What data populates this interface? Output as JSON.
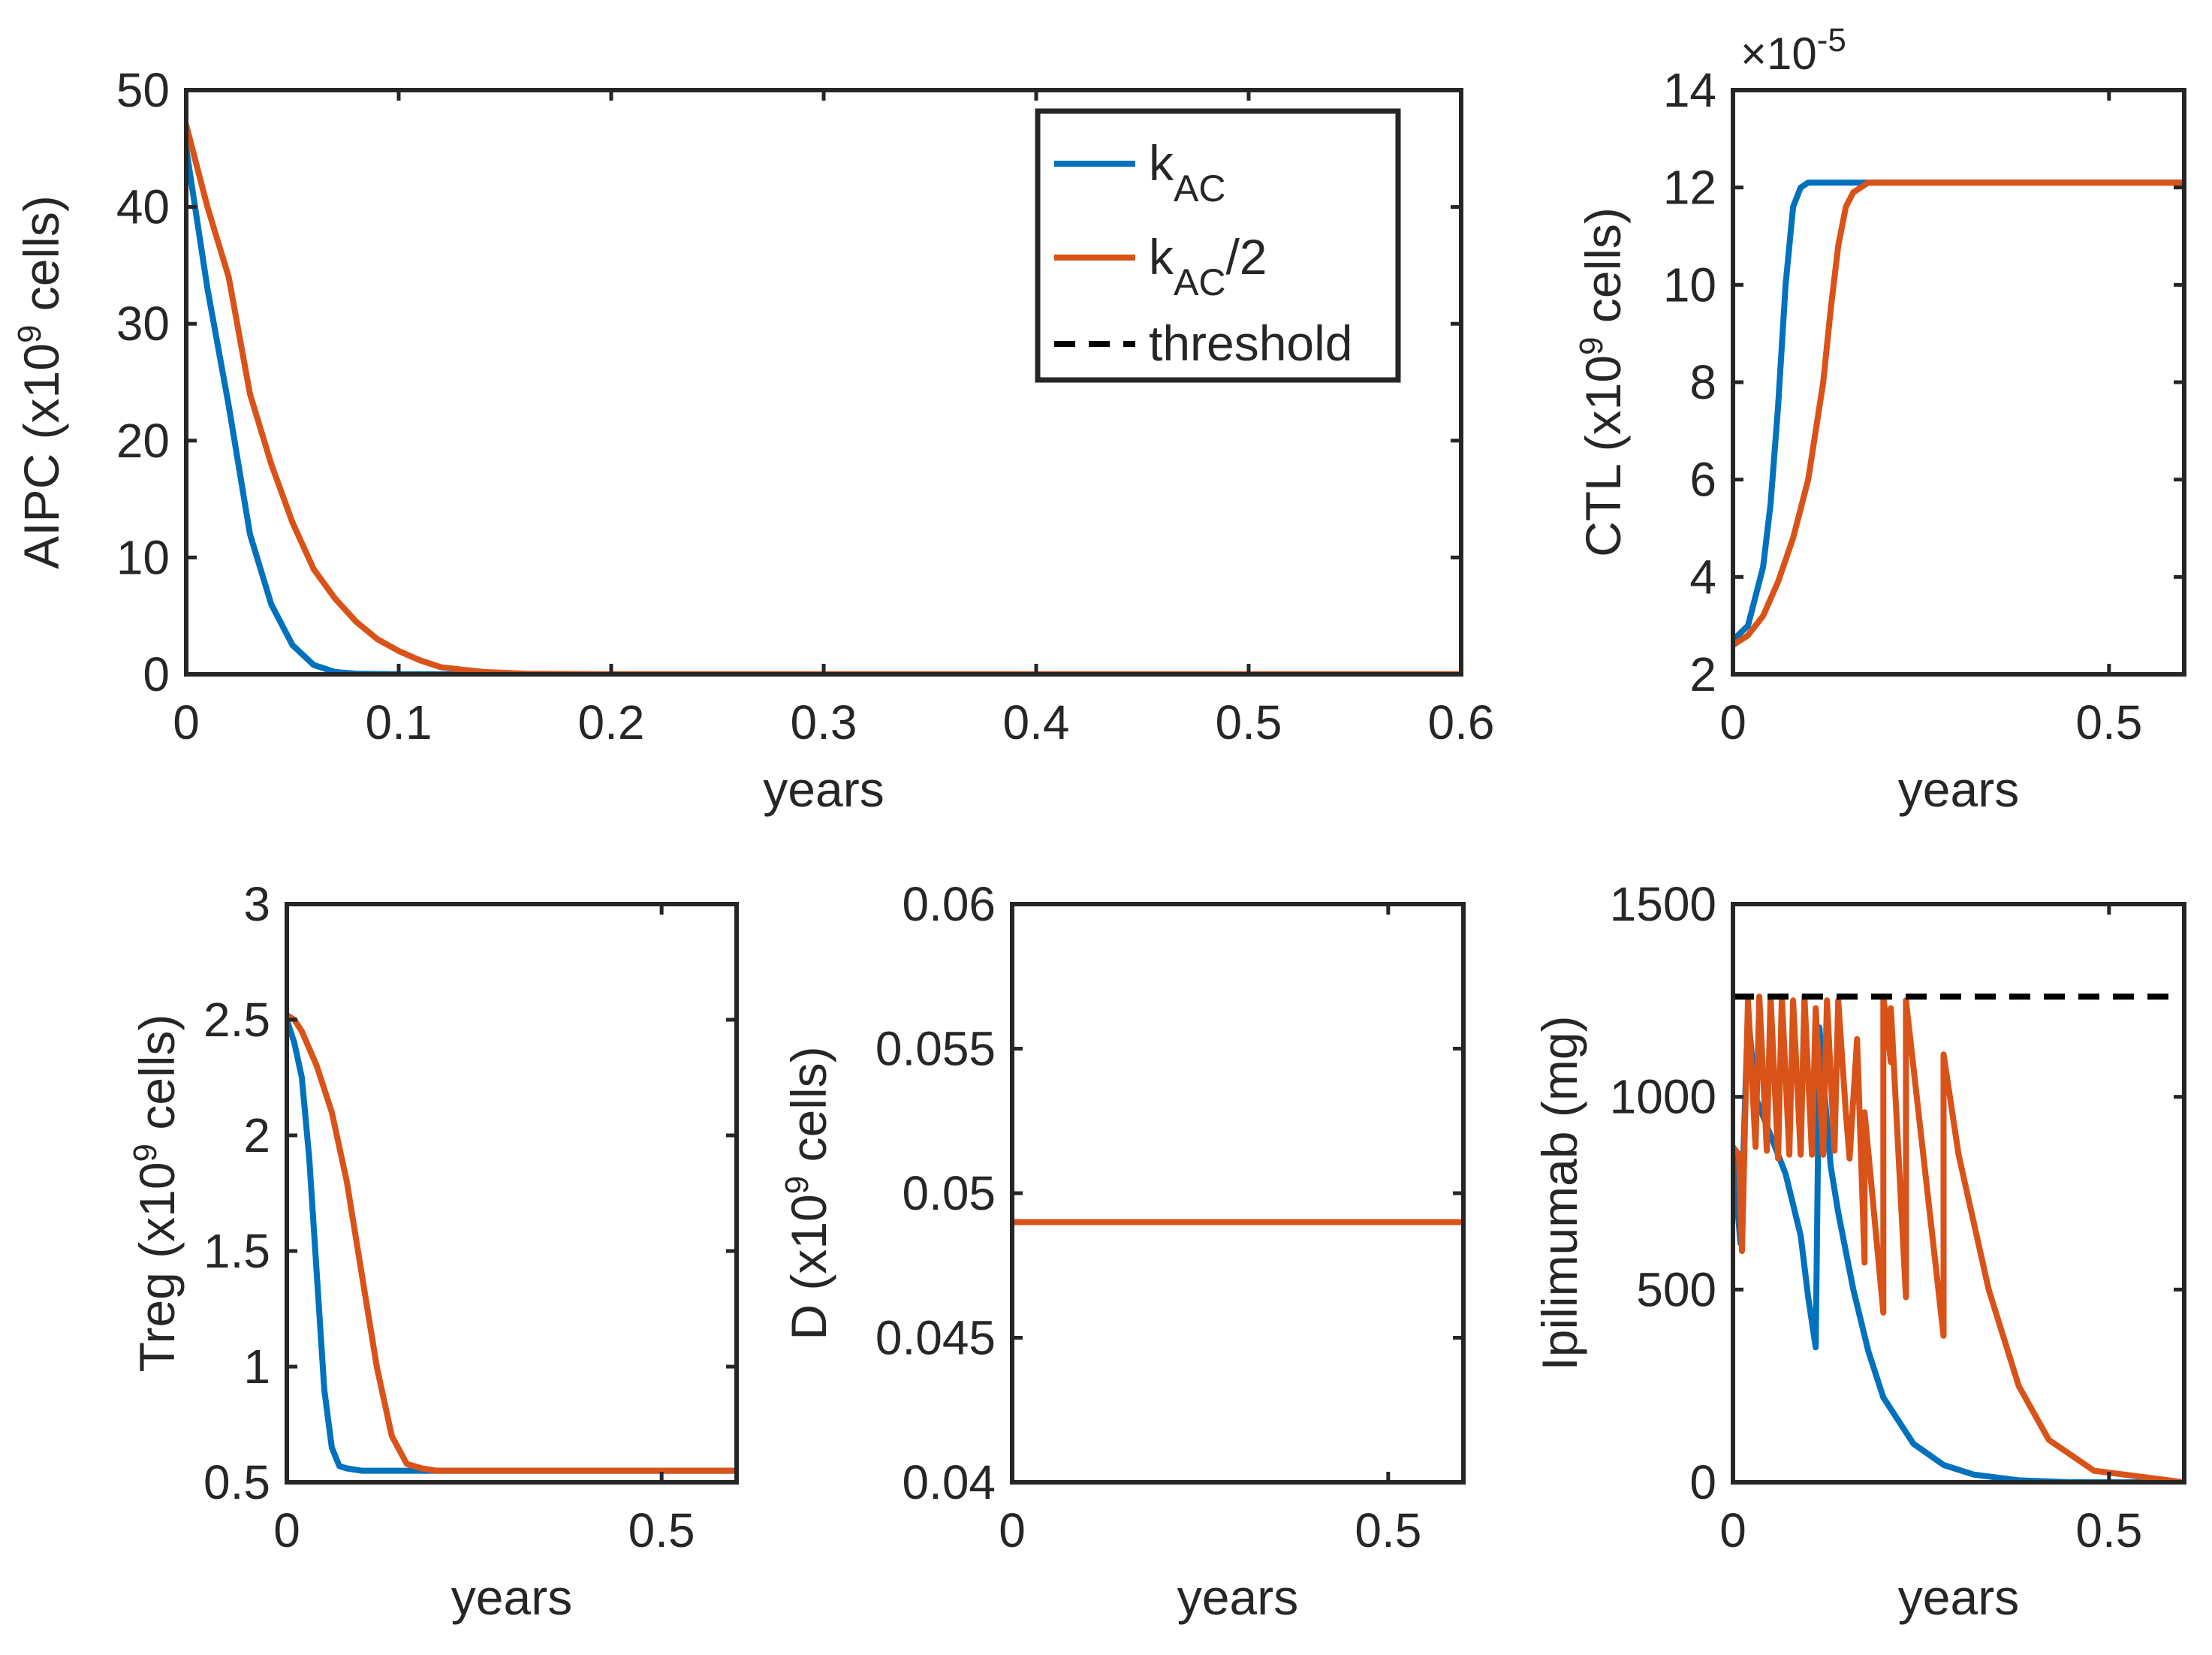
{
  "colors": {
    "blue": "#0072BD",
    "orange": "#D95319",
    "black": "#000000",
    "axis": "#262626"
  },
  "legend": {
    "location": "top-right of AIPC panel",
    "entries": [
      {
        "series": "kAC",
        "base": "k",
        "sub": "AC",
        "suffix": "",
        "color": "#0072BD",
        "style": "solid"
      },
      {
        "series": "kAC/2",
        "base": "k",
        "sub": "AC",
        "suffix": "/2",
        "color": "#D95319",
        "style": "solid"
      },
      {
        "series": "threshold",
        "base": "threshold",
        "sub": "",
        "suffix": "",
        "color": "#000000",
        "style": "dashed"
      }
    ]
  },
  "chart_data": [
    {
      "id": "aipc",
      "type": "line",
      "ylabel_main": "AIPC (x10",
      "ylabel_sup": "9",
      "ylabel_tail": " cells)",
      "xlabel": "years",
      "xlim": [
        0,
        0.6
      ],
      "ylim": [
        0,
        50
      ],
      "xticks": [
        0,
        0.1,
        0.2,
        0.3,
        0.4,
        0.5,
        0.6
      ],
      "xtick_labels": [
        "0",
        "0.1",
        "0.2",
        "0.3",
        "0.4",
        "0.5",
        "0.6"
      ],
      "yticks": [
        0,
        10,
        20,
        30,
        40,
        50
      ],
      "ytick_labels": [
        "0",
        "10",
        "20",
        "30",
        "40",
        "50"
      ],
      "series": [
        {
          "key": "kAC",
          "color": "#0072BD",
          "x": [
            0,
            0.01,
            0.02,
            0.03,
            0.04,
            0.05,
            0.06,
            0.07,
            0.08,
            0.1,
            0.12,
            0.6
          ],
          "y": [
            45,
            33,
            23,
            12,
            6,
            2.5,
            0.8,
            0.2,
            0.05,
            0,
            0,
            0
          ]
        },
        {
          "key": "kAC/2",
          "color": "#D95319",
          "x": [
            0,
            0.01,
            0.02,
            0.03,
            0.04,
            0.05,
            0.06,
            0.07,
            0.08,
            0.09,
            0.1,
            0.11,
            0.12,
            0.14,
            0.16,
            0.2,
            0.6
          ],
          "y": [
            47,
            40,
            34,
            24,
            18,
            13,
            9,
            6.5,
            4.5,
            3,
            2,
            1.2,
            0.6,
            0.2,
            0.05,
            0,
            0
          ]
        }
      ]
    },
    {
      "id": "ctl",
      "type": "line",
      "ylabel_main": "CTL (x10",
      "ylabel_sup": "9",
      "ylabel_tail": " cells)",
      "xlabel": "years",
      "exponent_base": "×10",
      "exponent_sup": "-5",
      "xlim": [
        0,
        0.6
      ],
      "ylim": [
        2,
        14
      ],
      "xticks": [
        0,
        0.5
      ],
      "xtick_labels": [
        "0",
        "0.5"
      ],
      "yticks": [
        2,
        4,
        6,
        8,
        10,
        12,
        14
      ],
      "ytick_labels": [
        "2",
        "4",
        "6",
        "8",
        "10",
        "12",
        "14"
      ],
      "series": [
        {
          "key": "kAC",
          "color": "#0072BD",
          "x": [
            0,
            0.02,
            0.04,
            0.05,
            0.06,
            0.07,
            0.08,
            0.09,
            0.1,
            0.12,
            0.6
          ],
          "y": [
            2.7,
            3.0,
            4.2,
            5.5,
            7.5,
            10.0,
            11.6,
            12.0,
            12.1,
            12.1,
            12.1
          ]
        },
        {
          "key": "kAC/2",
          "color": "#D95319",
          "x": [
            0,
            0.02,
            0.04,
            0.06,
            0.08,
            0.1,
            0.12,
            0.13,
            0.14,
            0.15,
            0.16,
            0.18,
            0.2,
            0.6
          ],
          "y": [
            2.6,
            2.8,
            3.2,
            3.9,
            4.8,
            6.0,
            8.0,
            9.5,
            10.8,
            11.6,
            11.9,
            12.1,
            12.1,
            12.1
          ]
        }
      ]
    },
    {
      "id": "treg",
      "type": "line",
      "ylabel_main": "Treg (x10",
      "ylabel_sup": "9",
      "ylabel_tail": " cells)",
      "xlabel": "years",
      "xlim": [
        0,
        0.6
      ],
      "ylim": [
        0.5,
        3
      ],
      "xticks": [
        0,
        0.5
      ],
      "xtick_labels": [
        "0",
        "0.5"
      ],
      "yticks": [
        0.5,
        1,
        1.5,
        2,
        2.5,
        3
      ],
      "ytick_labels": [
        "0.5",
        "1",
        "1.5",
        "2",
        "2.5",
        "3"
      ],
      "series": [
        {
          "key": "kAC",
          "color": "#0072BD",
          "x": [
            0,
            0.01,
            0.02,
            0.03,
            0.04,
            0.05,
            0.06,
            0.07,
            0.08,
            0.1,
            0.6
          ],
          "y": [
            2.5,
            2.4,
            2.25,
            1.9,
            1.4,
            0.9,
            0.65,
            0.57,
            0.56,
            0.55,
            0.55
          ]
        },
        {
          "key": "kAC/2",
          "color": "#D95319",
          "x": [
            0,
            0.01,
            0.02,
            0.04,
            0.06,
            0.08,
            0.1,
            0.12,
            0.14,
            0.16,
            0.18,
            0.2,
            0.6
          ],
          "y": [
            2.52,
            2.5,
            2.45,
            2.3,
            2.1,
            1.8,
            1.4,
            1.0,
            0.7,
            0.58,
            0.56,
            0.55,
            0.55
          ]
        }
      ]
    },
    {
      "id": "d",
      "type": "line",
      "ylabel_main": "D (x10",
      "ylabel_sup": "9",
      "ylabel_tail": " cells)",
      "xlabel": "years",
      "xlim": [
        0,
        0.6
      ],
      "ylim": [
        0.04,
        0.06
      ],
      "xticks": [
        0,
        0.5
      ],
      "xtick_labels": [
        "0",
        "0.5"
      ],
      "yticks": [
        0.04,
        0.045,
        0.05,
        0.055,
        0.06
      ],
      "ytick_labels": [
        "0.04",
        "0.045",
        "0.05",
        "0.055",
        "0.06"
      ],
      "series": [
        {
          "key": "kAC",
          "color": "#0072BD",
          "x": [
            0,
            0.6
          ],
          "y": [
            0.049,
            0.049
          ]
        },
        {
          "key": "kAC/2",
          "color": "#D95319",
          "x": [
            0,
            0.6
          ],
          "y": [
            0.049,
            0.049
          ]
        }
      ]
    },
    {
      "id": "ipilimumab",
      "type": "line",
      "ylabel_main": "Ipilimumab (mg)",
      "ylabel_sup": "",
      "ylabel_tail": "",
      "xlabel": "years",
      "xlim": [
        0,
        0.6
      ],
      "ylim": [
        0,
        1500
      ],
      "xticks": [
        0,
        0.5
      ],
      "xtick_labels": [
        "0",
        "0.5"
      ],
      "yticks": [
        0,
        500,
        1000,
        1500
      ],
      "ytick_labels": [
        "0",
        "500",
        "1000",
        "1500"
      ],
      "threshold": 1260,
      "series": [
        {
          "key": "kAC",
          "color": "#0072BD",
          "x": [
            0,
            0.01,
            0.02,
            0.03,
            0.05,
            0.07,
            0.09,
            0.1,
            0.11,
            0.115,
            0.12,
            0.13,
            0.14,
            0.16,
            0.18,
            0.2,
            0.24,
            0.28,
            0.32,
            0.38,
            0.45,
            0.6
          ],
          "y": [
            850,
            620,
            1220,
            1000,
            900,
            800,
            640,
            480,
            350,
            1180,
            1050,
            820,
            700,
            500,
            340,
            220,
            100,
            45,
            20,
            5,
            0,
            0
          ]
        },
        {
          "key": "kAC/2",
          "color": "#D95319",
          "x": [
            0,
            0.008,
            0.012,
            0.02,
            0.02,
            0.03,
            0.035,
            0.045,
            0.05,
            0.06,
            0.065,
            0.075,
            0.08,
            0.09,
            0.095,
            0.105,
            0.11,
            0.12,
            0.125,
            0.135,
            0.14,
            0.15,
            0.155,
            0.165,
            0.175,
            0.175,
            0.2,
            0.2,
            0.21,
            0.21,
            0.23,
            0.23,
            0.28,
            0.28,
            0.3,
            0.34,
            0.38,
            0.42,
            0.48,
            0.6
          ],
          "y": [
            870,
            850,
            600,
            1250,
            1250,
            870,
            1260,
            860,
            1260,
            840,
            1260,
            850,
            1250,
            850,
            1260,
            850,
            1230,
            850,
            1250,
            860,
            1250,
            960,
            840,
            1150,
            570,
            960,
            440,
            1260,
            1090,
            1230,
            480,
            1250,
            380,
            1110,
            850,
            500,
            250,
            110,
            30,
            0
          ]
        }
      ]
    }
  ]
}
